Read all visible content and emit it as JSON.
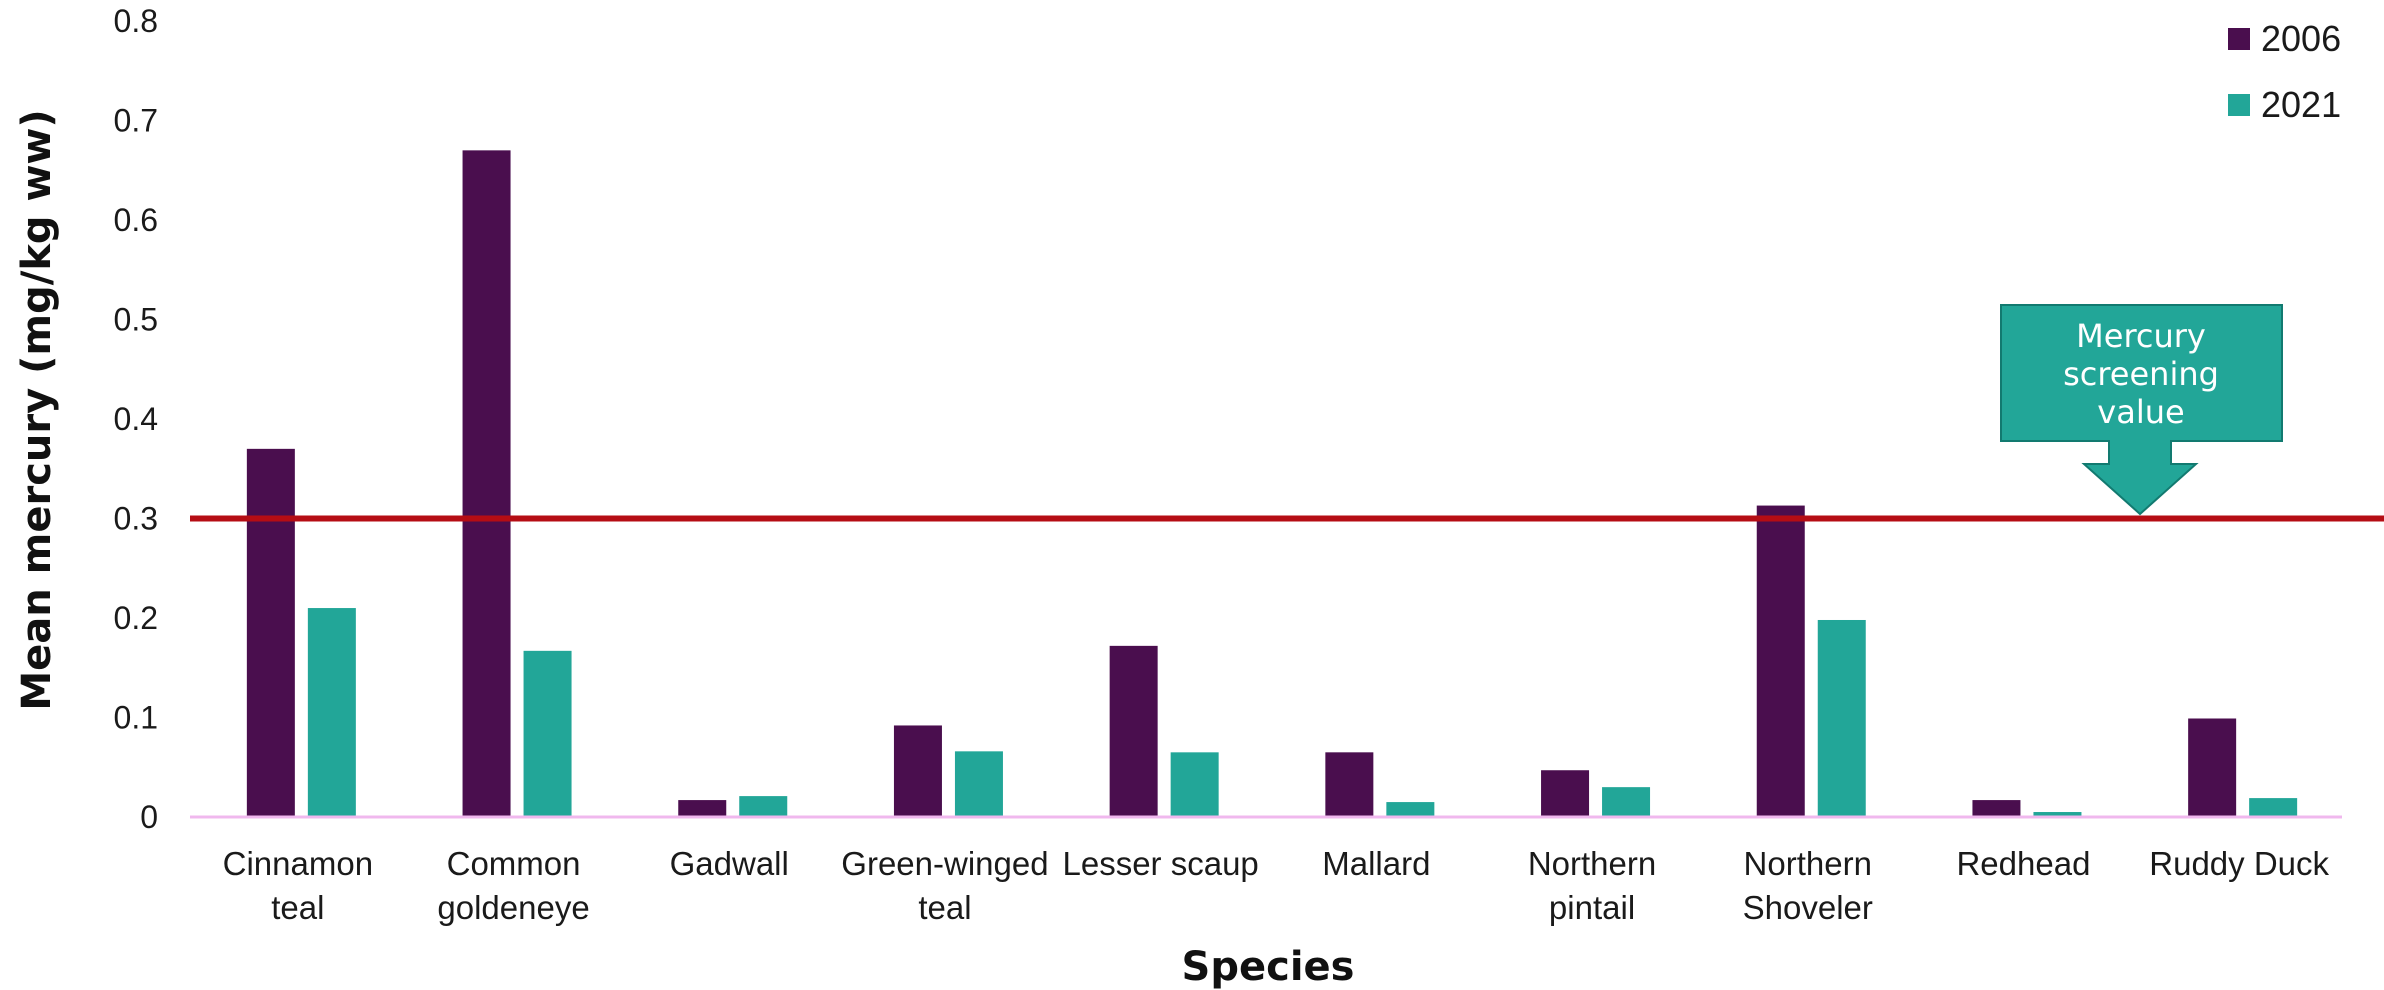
{
  "chart_data": {
    "type": "bar",
    "title": "",
    "xlabel": "Species",
    "ylabel": "Mean mercury (mg/kg ww)",
    "ylim": [
      0,
      0.8
    ],
    "yticks": [
      {
        "value": 0,
        "label": "0"
      },
      {
        "value": 0.1,
        "label": "0.1"
      },
      {
        "value": 0.2,
        "label": "0.2"
      },
      {
        "value": 0.3,
        "label": "0.3"
      },
      {
        "value": 0.4,
        "label": "0.4"
      },
      {
        "value": 0.5,
        "label": "0.5"
      },
      {
        "value": 0.6,
        "label": "0.6"
      },
      {
        "value": 0.7,
        "label": "0.7"
      },
      {
        "value": 0.8,
        "label": "0.8"
      }
    ],
    "grid": false,
    "legend_position": "top-right",
    "categories": [
      [
        "Cinnamon",
        "teal"
      ],
      [
        "Common",
        "goldeneye"
      ],
      [
        "Gadwall"
      ],
      [
        "Green-winged",
        "teal"
      ],
      [
        "Lesser scaup"
      ],
      [
        "Mallard"
      ],
      [
        "Northern",
        "pintail"
      ],
      [
        "Northern",
        "Shoveler"
      ],
      [
        "Redhead"
      ],
      [
        "Ruddy Duck"
      ]
    ],
    "series": [
      {
        "name": "2006",
        "color": "#4a0e4e",
        "values": [
          0.37,
          0.67,
          0.017,
          0.092,
          0.172,
          0.065,
          0.047,
          0.313,
          0.017,
          0.099
        ]
      },
      {
        "name": "2021",
        "color": "#22a698",
        "values": [
          0.21,
          0.167,
          0.021,
          0.066,
          0.065,
          0.015,
          0.03,
          0.198,
          0.005,
          0.019
        ]
      }
    ],
    "reference_line": {
      "value": 0.3,
      "color": "#b50d14",
      "label": [
        "Mercury",
        "screening",
        "value"
      ],
      "label_color": "#22a698"
    },
    "axis_line_color": "#f0b8ee"
  }
}
